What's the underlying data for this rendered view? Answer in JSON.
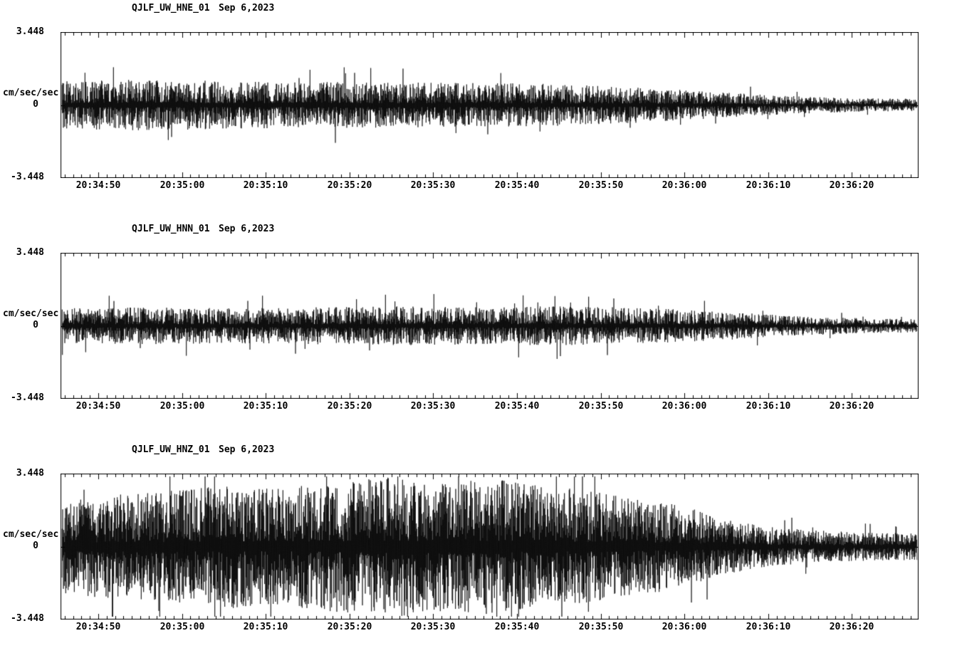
{
  "page": {
    "background": "#ffffff",
    "trace_color": "#000000"
  },
  "chart_data": [
    {
      "type": "line",
      "chart_kind": "seismogram",
      "station": "QJLF_UW_HNE_01",
      "date": "Sep 6,2023",
      "title": "QJLF_UW_HNE_01  Sep 6,2023",
      "ylabel": "cm/sec/sec",
      "y_top": "3.448",
      "y_zero": "0",
      "y_bottom": "-3.448",
      "ylim": [
        -3.448,
        3.448
      ],
      "x_ticks": [
        "20:34:50",
        "20:35:00",
        "20:35:10",
        "20:35:20",
        "20:35:30",
        "20:35:40",
        "20:35:50",
        "20:36:00",
        "20:36:10",
        "20:36:20"
      ],
      "x_tick_interval_seconds": 10,
      "grid": false,
      "envelope": [
        [
          0,
          1.15
        ],
        [
          0.08,
          1.25
        ],
        [
          0.15,
          1.2
        ],
        [
          0.25,
          1.15
        ],
        [
          0.35,
          1.1
        ],
        [
          0.45,
          1.1
        ],
        [
          0.55,
          1.05
        ],
        [
          0.62,
          0.95
        ],
        [
          0.68,
          0.85
        ],
        [
          0.74,
          0.7
        ],
        [
          0.8,
          0.55
        ],
        [
          0.86,
          0.42
        ],
        [
          0.93,
          0.33
        ],
        [
          1,
          0.3
        ]
      ],
      "synthesis": {
        "seed": 90611,
        "spike_prob": 0.006,
        "density": 1.4
      }
    },
    {
      "type": "line",
      "chart_kind": "seismogram",
      "station": "QJLF_UW_HNN_01",
      "date": "Sep 6,2023",
      "title": "QJLF_UW_HNN_01  Sep 6,2023",
      "ylabel": "cm/sec/sec",
      "y_top": "3.448",
      "y_zero": "0",
      "y_bottom": "-3.448",
      "ylim": [
        -3.448,
        3.448
      ],
      "x_ticks": [
        "20:34:50",
        "20:35:00",
        "20:35:10",
        "20:35:20",
        "20:35:30",
        "20:35:40",
        "20:35:50",
        "20:36:00",
        "20:36:10",
        "20:36:20"
      ],
      "x_tick_interval_seconds": 10,
      "grid": false,
      "envelope": [
        [
          0,
          0.85
        ],
        [
          0.1,
          0.9
        ],
        [
          0.2,
          0.85
        ],
        [
          0.3,
          0.9
        ],
        [
          0.4,
          0.95
        ],
        [
          0.48,
          0.9
        ],
        [
          0.58,
          0.95
        ],
        [
          0.65,
          0.9
        ],
        [
          0.72,
          0.8
        ],
        [
          0.78,
          0.68
        ],
        [
          0.85,
          0.5
        ],
        [
          0.92,
          0.38
        ],
        [
          1,
          0.32
        ]
      ],
      "synthesis": {
        "seed": 90622,
        "spike_prob": 0.009,
        "density": 1.4
      }
    },
    {
      "type": "line",
      "chart_kind": "seismogram",
      "station": "QJLF_UW_HNZ_01",
      "date": "Sep 6,2023",
      "title": "QJLF_UW_HNZ_01  Sep 6,2023",
      "ylabel": "cm/sec/sec",
      "y_top": "3.448",
      "y_zero": "0",
      "y_bottom": "-3.448",
      "ylim": [
        -3.448,
        3.448
      ],
      "x_ticks": [
        "20:34:50",
        "20:35:00",
        "20:35:10",
        "20:35:20",
        "20:35:30",
        "20:35:40",
        "20:35:50",
        "20:36:00",
        "20:36:10",
        "20:36:20"
      ],
      "x_tick_interval_seconds": 10,
      "grid": false,
      "envelope": [
        [
          0,
          2.3
        ],
        [
          0.05,
          2.5
        ],
        [
          0.1,
          2.6
        ],
        [
          0.15,
          2.8
        ],
        [
          0.2,
          3.0
        ],
        [
          0.25,
          2.8
        ],
        [
          0.3,
          3.1
        ],
        [
          0.35,
          3.3
        ],
        [
          0.4,
          3.4
        ],
        [
          0.45,
          3.2
        ],
        [
          0.5,
          3.35
        ],
        [
          0.55,
          3.0
        ],
        [
          0.6,
          2.8
        ],
        [
          0.65,
          2.5
        ],
        [
          0.7,
          2.2
        ],
        [
          0.74,
          1.8
        ],
        [
          0.78,
          1.3
        ],
        [
          0.82,
          1.0
        ],
        [
          0.87,
          0.8
        ],
        [
          0.93,
          0.7
        ],
        [
          1,
          0.65
        ]
      ],
      "synthesis": {
        "seed": 90633,
        "spike_prob": 0.012,
        "density": 1.1
      }
    }
  ]
}
